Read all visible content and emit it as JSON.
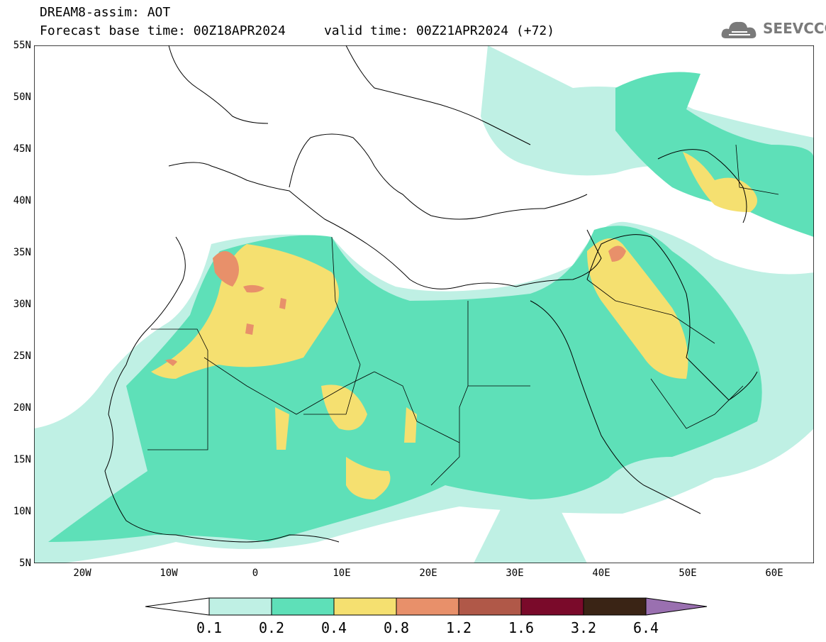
{
  "header": {
    "line1": "DREAM8-assim: AOT",
    "line2": "Forecast base time: 00Z18APR2024     valid time: 00Z21APR2024 (+72)"
  },
  "logo": {
    "text": "SEEVCCC",
    "icon": "cloud-icon"
  },
  "map": {
    "extent": {
      "lon": [
        -25,
        65
      ],
      "lat": [
        5,
        55
      ]
    },
    "lat_labels": [
      "55N",
      "50N",
      "45N",
      "40N",
      "35N",
      "30N",
      "25N",
      "20N",
      "15N",
      "10N",
      "5N"
    ],
    "lon_labels": [
      "20W",
      "10W",
      "0",
      "10E",
      "20E",
      "30E",
      "40E",
      "50E",
      "60E"
    ]
  },
  "colorbar": {
    "labels": [
      "0.1",
      "0.2",
      "0.4",
      "0.8",
      "1.2",
      "1.6",
      "3.2",
      "6.4"
    ],
    "colors": [
      "#ffffff",
      "#bff0e4",
      "#5ee0b8",
      "#f5e070",
      "#e8906a",
      "#b05848",
      "#7a0a2a",
      "#3a2415",
      "#9a70b0"
    ]
  }
}
